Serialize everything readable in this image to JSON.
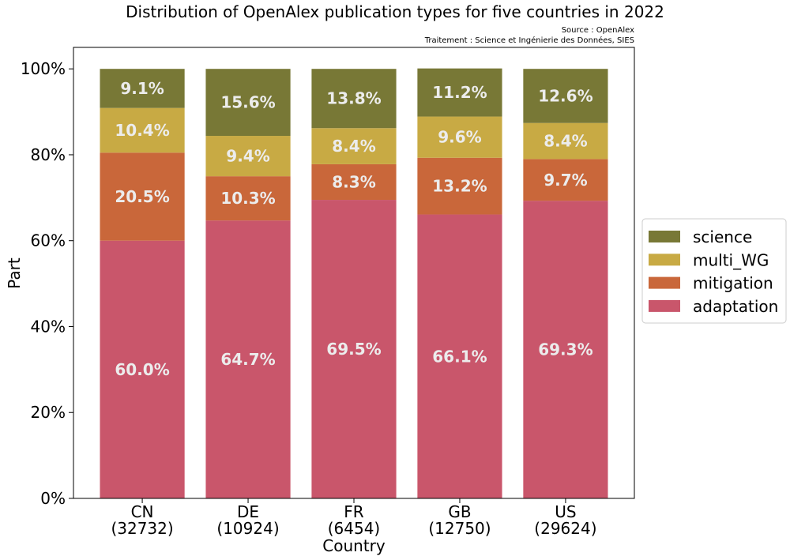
{
  "chart_data": {
    "type": "bar",
    "stacked": true,
    "title": "Distribution of OpenAlex publication types for five countries in 2022",
    "source_lines": [
      "Source : OpenAlex",
      "Traitement : Science et Ingénierie des Données, SIES"
    ],
    "xlabel": "Country",
    "ylabel": "Part",
    "ylim": [
      0,
      105
    ],
    "yticks": [
      "0%",
      "20%",
      "40%",
      "60%",
      "80%",
      "100%"
    ],
    "categories": [
      "CN",
      "DE",
      "FR",
      "GB",
      "US"
    ],
    "category_counts": [
      "(32732)",
      "(10924)",
      "(6454)",
      "(12750)",
      "(29624)"
    ],
    "series": [
      {
        "name": "adaptation",
        "color": "#c9566b",
        "values": [
          60.0,
          64.7,
          69.5,
          66.1,
          69.3
        ],
        "labels": [
          "60.0%",
          "64.7%",
          "69.5%",
          "66.1%",
          "69.3%"
        ]
      },
      {
        "name": "mitigation",
        "color": "#c9673a",
        "values": [
          20.5,
          10.3,
          8.3,
          13.2,
          9.7
        ],
        "labels": [
          "20.5%",
          "10.3%",
          "8.3%",
          "13.2%",
          "9.7%"
        ]
      },
      {
        "name": "multi_WG",
        "color": "#c8aa44",
        "values": [
          10.4,
          9.4,
          8.4,
          9.6,
          8.4
        ],
        "labels": [
          "10.4%",
          "9.4%",
          "8.4%",
          "9.6%",
          "8.4%"
        ]
      },
      {
        "name": "science",
        "color": "#787836",
        "values": [
          9.1,
          15.6,
          13.8,
          11.2,
          12.6
        ],
        "labels": [
          "9.1%",
          "15.6%",
          "13.8%",
          "11.2%",
          "12.6%"
        ]
      }
    ],
    "legend_order": [
      "science",
      "multi_WG",
      "mitigation",
      "adaptation"
    ],
    "legend_position": "right"
  }
}
